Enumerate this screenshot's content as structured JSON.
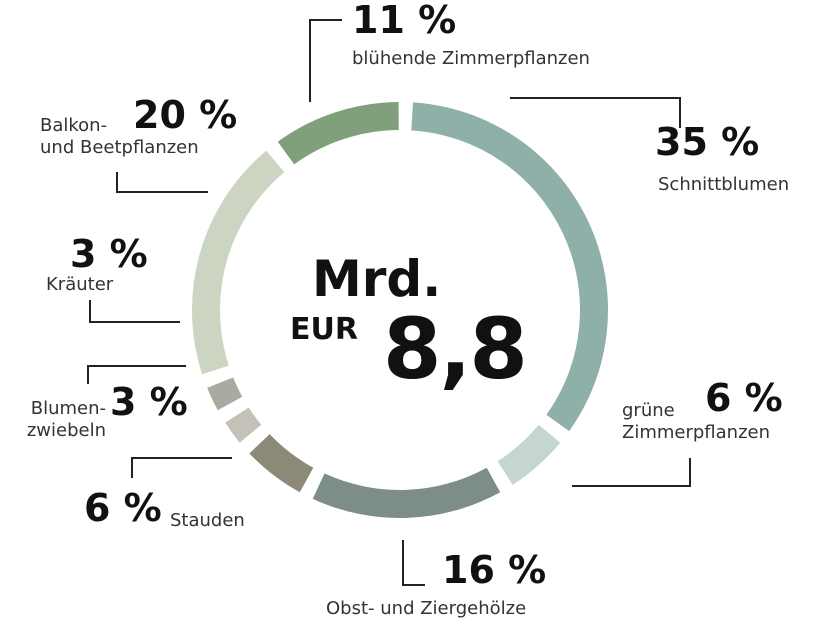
{
  "chart_data": {
    "type": "donut",
    "center_unit": "Mrd.",
    "center_currency": "EUR",
    "center_total": "8,8",
    "categories": [
      "blühende Zimmerpflanzen",
      "Schnittblumen",
      "grüne\nZimmerpflanzen",
      "Obst- und Ziergehölze",
      "Stauden",
      "Blumen-\nzwiebeln",
      "Kräuter",
      "Balkon-\nund Beetpflanzen"
    ],
    "values": [
      11,
      35,
      6,
      16,
      6,
      3,
      3,
      20
    ],
    "value_labels": [
      "11 %",
      "35 %",
      "6 %",
      "16 %",
      "6 %",
      "3 %",
      "3 %",
      "20 %"
    ],
    "colors": [
      "#7fa07a",
      "#8fb0a8",
      "#c5d6cf",
      "#7c8d8a",
      "#8c8a76",
      "#c4c2b8",
      "#a8aca0",
      "#ccd5c2"
    ]
  }
}
